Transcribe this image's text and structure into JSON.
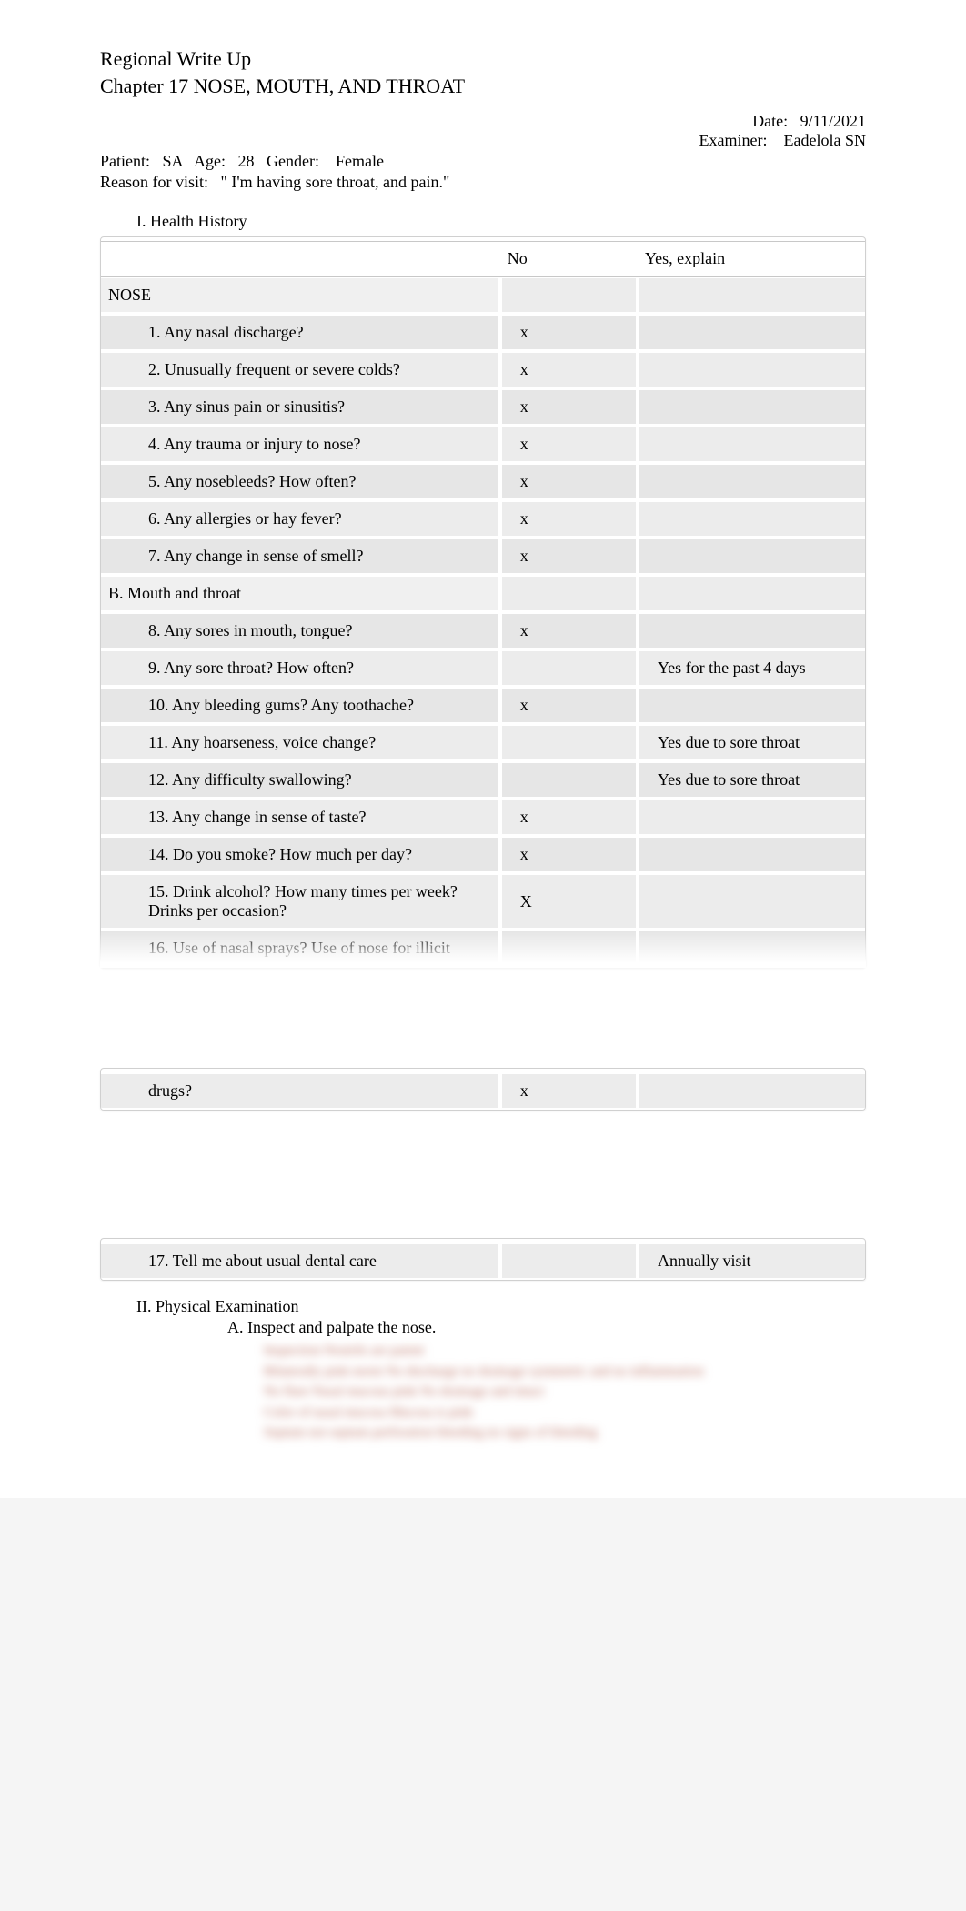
{
  "header": {
    "line1": "Regional Write Up",
    "line2": "Chapter 17 NOSE, MOUTH, AND THROAT"
  },
  "meta": {
    "date_label": "Date:",
    "date_value": "9/11/2021",
    "examiner_label": "Examiner:",
    "examiner_value": "Eadelola SN",
    "patient_label": "Patient:",
    "patient_value": "SA",
    "age_label": "Age:",
    "age_value": "28",
    "gender_label": "Gender:",
    "gender_value": "Female",
    "reason_label": "Reason for visit:",
    "reason_value": "\"  I'm having sore throat, and pain.\""
  },
  "sections": {
    "i_label": "I.      Health History",
    "ii_label": "II.      Physical Examination",
    "ii_a": "A.   Inspect and palpate the nose."
  },
  "table": {
    "head_no": "No",
    "head_yes": "Yes, explain",
    "rows": [
      {
        "type": "subhead",
        "q": "NOSE",
        "no": "",
        "yes": ""
      },
      {
        "type": "q",
        "q": "1.  Any nasal discharge?",
        "no": "x",
        "yes": ""
      },
      {
        "type": "q",
        "q": "2.  Unusually frequent or severe colds?",
        "no": "x",
        "yes": ""
      },
      {
        "type": "q",
        "q": "3.  Any sinus pain or sinusitis?",
        "no": "x",
        "yes": ""
      },
      {
        "type": "q",
        "q": "4.  Any trauma or injury to nose?",
        "no": "x",
        "yes": ""
      },
      {
        "type": "q",
        "q": "5.  Any nosebleeds? How often?",
        "no": "x",
        "yes": ""
      },
      {
        "type": "q",
        "q": "6.  Any allergies or hay fever?",
        "no": "x",
        "yes": ""
      },
      {
        "type": "q",
        "q": "7.  Any change in sense of smell?",
        "no": "x",
        "yes": ""
      },
      {
        "type": "subhead",
        "q": "B. Mouth and throat",
        "no": "",
        "yes": ""
      },
      {
        "type": "q",
        "q": "8.  Any sores in mouth, tongue?",
        "no": "x",
        "yes": ""
      },
      {
        "type": "q",
        "q": "9.  Any sore throat? How often?",
        "no": "",
        "yes": "Yes for the past 4 days"
      },
      {
        "type": "q",
        "q": "10. Any bleeding gums? Any toothache?",
        "no": "x",
        "yes": ""
      },
      {
        "type": "q",
        "q": "11.  Any hoarseness, voice change?",
        "no": "",
        "yes": "Yes due to sore throat"
      },
      {
        "type": "q",
        "q": "12. Any difficulty swallowing?",
        "no": "",
        "yes": "Yes due to sore throat"
      },
      {
        "type": "q",
        "q": "13. Any change in sense of taste?",
        "no": "x",
        "yes": ""
      },
      {
        "type": "q",
        "q": "14. Do you smoke? How much per day?",
        "no": "x",
        "yes": ""
      },
      {
        "type": "q",
        "q": "15. Drink alcohol? How many times per week? Drinks per occasion?",
        "no": "X",
        "yes": ""
      },
      {
        "type": "q",
        "q": "16. Use of nasal sprays? Use of nose for illicit",
        "no": "",
        "yes": ""
      }
    ],
    "continuation1": [
      {
        "type": "q",
        "q": "drugs?",
        "no": "x",
        "yes": ""
      }
    ],
    "continuation2": [
      {
        "type": "q",
        "q": "17. Tell me about usual dental care",
        "no": "",
        "yes": "Annually visit"
      }
    ]
  },
  "blurred_lines": [
    "Inspection   Nostrils are patent",
    "Bilaterally   pink moist   No discharge   no drainage   symmetric and no inflammation",
    "No flare   Nasal mucous   pink   No drainage and intact",
    "Color of nasal mucosa   Mucosa is pink",
    "Septum   not septum   perforation   bleeding   no signs of bleeding"
  ],
  "colors": {
    "page_bg": "#ffffff",
    "row_bg_a": "#ececec",
    "row_bg_b": "#e6e6e6",
    "border": "#d0d0d0",
    "blur_text": "#b86b5c"
  }
}
